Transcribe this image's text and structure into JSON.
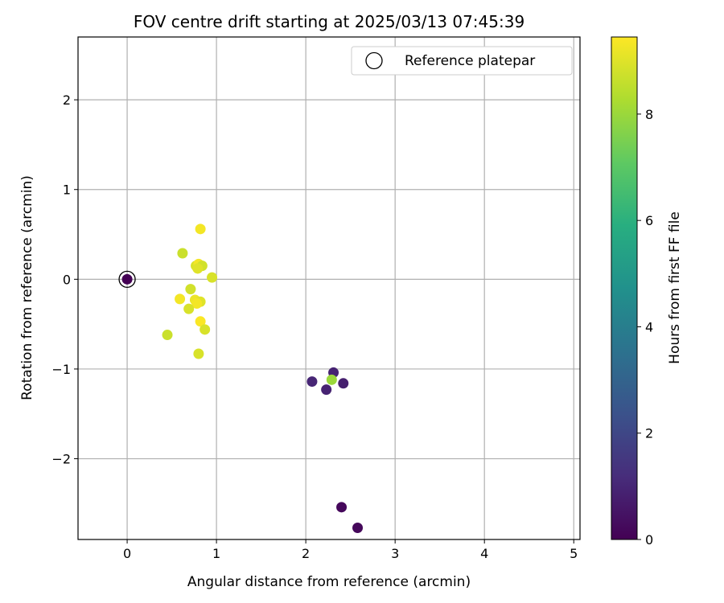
{
  "chart_data": {
    "type": "scatter",
    "title": "FOV centre drift starting at 2025/03/13 07:45:39",
    "xlabel": "Angular distance from reference (arcmin)",
    "ylabel": "Rotation from reference (arcmin)",
    "xlim": [
      -0.55,
      5.07
    ],
    "ylim": [
      -2.9,
      2.7
    ],
    "xticks": [
      0,
      1,
      2,
      3,
      4,
      5
    ],
    "yticks": [
      -2,
      -1,
      0,
      1,
      2
    ],
    "xtick_labels": [
      "0",
      "1",
      "2",
      "3",
      "4",
      "5"
    ],
    "ytick_labels": [
      "−2",
      "−1",
      "0",
      "1",
      "2"
    ],
    "grid": true,
    "legend": {
      "placement": "top-right",
      "entries": [
        "Reference platepar"
      ]
    },
    "colorbar": {
      "label": "Hours from first FF file",
      "colormap": "viridis",
      "range": [
        0,
        9.45
      ],
      "ticks": [
        0,
        2,
        4,
        6,
        8
      ],
      "tick_labels": [
        "0",
        "2",
        "4",
        "6",
        "8"
      ]
    },
    "reference_point": {
      "x": 0,
      "y": 0,
      "hours": 0
    },
    "points": [
      {
        "x": 0.0,
        "y": 0.0,
        "hours": 0.0
      },
      {
        "x": 2.4,
        "y": -2.54,
        "hours": 0.2
      },
      {
        "x": 2.58,
        "y": -2.77,
        "hours": 0.2
      },
      {
        "x": 2.07,
        "y": -1.14,
        "hours": 1.0
      },
      {
        "x": 2.31,
        "y": -1.04,
        "hours": 0.9
      },
      {
        "x": 2.42,
        "y": -1.16,
        "hours": 0.8
      },
      {
        "x": 2.23,
        "y": -1.23,
        "hours": 0.9
      },
      {
        "x": 2.29,
        "y": -1.12,
        "hours": 8.0
      },
      {
        "x": 0.82,
        "y": 0.56,
        "hours": 9.3
      },
      {
        "x": 0.62,
        "y": 0.29,
        "hours": 8.7
      },
      {
        "x": 0.77,
        "y": 0.15,
        "hours": 8.9
      },
      {
        "x": 0.8,
        "y": 0.17,
        "hours": 9.3
      },
      {
        "x": 0.84,
        "y": 0.15,
        "hours": 8.8
      },
      {
        "x": 0.79,
        "y": 0.12,
        "hours": 9.0
      },
      {
        "x": 0.95,
        "y": 0.02,
        "hours": 8.9
      },
      {
        "x": 0.71,
        "y": -0.11,
        "hours": 8.8
      },
      {
        "x": 0.59,
        "y": -0.22,
        "hours": 9.3
      },
      {
        "x": 0.76,
        "y": -0.23,
        "hours": 9.2
      },
      {
        "x": 0.82,
        "y": -0.25,
        "hours": 9.0
      },
      {
        "x": 0.78,
        "y": -0.27,
        "hours": 9.3
      },
      {
        "x": 0.69,
        "y": -0.33,
        "hours": 8.9
      },
      {
        "x": 0.82,
        "y": -0.47,
        "hours": 9.4
      },
      {
        "x": 0.87,
        "y": -0.56,
        "hours": 8.9
      },
      {
        "x": 0.45,
        "y": -0.62,
        "hours": 8.7
      },
      {
        "x": 0.8,
        "y": -0.83,
        "hours": 8.9
      }
    ]
  }
}
